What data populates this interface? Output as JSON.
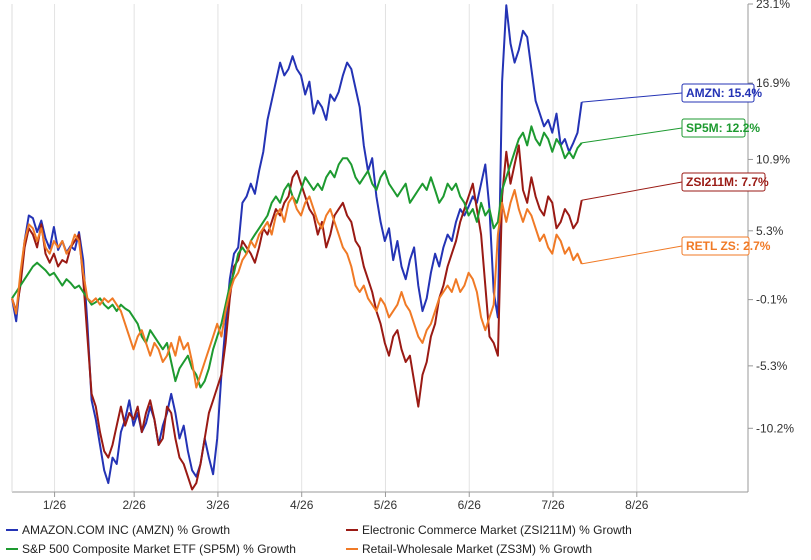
{
  "chart_data": {
    "type": "line",
    "title": "",
    "xlabel": "",
    "ylabel": "",
    "x_ticks": [
      "1/26",
      "2/26",
      "3/26",
      "4/26",
      "5/26",
      "6/26",
      "7/26",
      "8/26"
    ],
    "y_ticks": [
      "23.1%",
      "16.9%",
      "10.9%",
      "5.3%",
      "-0.1%",
      "-5.3%",
      "-10.2%"
    ],
    "ylim": [
      -15.2,
      23.1
    ],
    "x_range": [
      0,
      159
    ],
    "grid": "vertical",
    "series": [
      {
        "name": "AMAZON.COM INC (AMZN) % Growth",
        "color": "#2433b5",
        "end_label": "AMZN: 15.4%",
        "values": [
          0,
          -1.8,
          1.5,
          4.5,
          6.5,
          6.3,
          5.2,
          6.1,
          4.7,
          3.9,
          5.6,
          3.8,
          4.5,
          3.6,
          4.1,
          3.8,
          5.2,
          3.0,
          -2.0,
          -8.0,
          -9.5,
          -11.5,
          -13.5,
          -14.5,
          -12.5,
          -13.0,
          -10.5,
          -9.5,
          -8.0,
          -10.0,
          -9.0,
          -10.5,
          -9.8,
          -8.5,
          -9.5,
          -11.5,
          -10.0,
          -9.0,
          -7.5,
          -9.0,
          -11.0,
          -10.0,
          -12.0,
          -13.5,
          -14.0,
          -13.0,
          -11.0,
          -12.5,
          -13.8,
          -11.0,
          -6.0,
          -2.0,
          1.5,
          3.5,
          4.0,
          7.5,
          8.0,
          9.0,
          8.2,
          10.0,
          11.5,
          14.0,
          15.5,
          17.0,
          18.5,
          17.5,
          18.0,
          19.0,
          18.0,
          17.5,
          16.0,
          17.0,
          14.5,
          15.5,
          15.0,
          14.0,
          16.0,
          15.5,
          16.2,
          17.5,
          18.5,
          18.0,
          16.5,
          15.0,
          12.0,
          10.0,
          11.0,
          8.0,
          6.0,
          4.5,
          5.5,
          3.0,
          4.5,
          2.5,
          1.5,
          3.0,
          4.0,
          1.0,
          -1.0,
          0.0,
          2.0,
          3.5,
          2.5,
          4.0,
          5.0,
          4.5,
          6.0,
          7.0,
          6.5,
          7.2,
          8.0,
          7.5,
          9.0,
          10.5,
          7.0,
          0.5,
          -1.5,
          17.0,
          23.0,
          20.0,
          18.5,
          19.5,
          21.0,
          20.5,
          18.0,
          15.5,
          14.5,
          13.5,
          14.0,
          13.0,
          14.5,
          12.0,
          12.5,
          11.5,
          12.2,
          13.0,
          15.4
        ]
      },
      {
        "name": "Electronic Commerce Market (ZSI211M) % Growth",
        "color": "#9a1a14",
        "end_label": "ZSI211M: 7.7%",
        "values": [
          0,
          -1.0,
          1.0,
          4.0,
          5.5,
          5.0,
          4.0,
          5.8,
          3.5,
          2.8,
          3.5,
          2.5,
          3.0,
          2.8,
          4.0,
          4.5,
          5.0,
          1.5,
          -3.0,
          -7.5,
          -8.5,
          -10.5,
          -12.0,
          -12.5,
          -11.5,
          -10.0,
          -8.5,
          -10.0,
          -9.0,
          -9.5,
          -8.5,
          -10.5,
          -9.0,
          -8.0,
          -9.5,
          -11.5,
          -11.0,
          -8.5,
          -9.0,
          -11.0,
          -12.5,
          -13.0,
          -14.0,
          -15.0,
          -14.5,
          -13.0,
          -11.0,
          -9.0,
          -8.0,
          -7.0,
          -6.0,
          -3.5,
          0.0,
          2.5,
          3.0,
          4.5,
          4.0,
          3.5,
          2.8,
          4.0,
          5.5,
          5.0,
          6.0,
          7.0,
          6.5,
          7.5,
          8.0,
          9.5,
          10.0,
          9.0,
          8.0,
          7.0,
          6.5,
          5.0,
          6.0,
          4.0,
          5.0,
          6.5,
          7.0,
          7.5,
          6.5,
          6.0,
          4.5,
          4.0,
          2.5,
          1.5,
          0.5,
          -1.0,
          -2.0,
          -3.5,
          -4.5,
          -3.0,
          -2.5,
          -4.0,
          -5.0,
          -4.5,
          -6.5,
          -8.5,
          -6.0,
          -5.0,
          -3.0,
          -2.0,
          0.0,
          1.0,
          2.5,
          3.5,
          4.5,
          6.0,
          7.0,
          8.0,
          9.0,
          7.0,
          5.0,
          1.0,
          -3.0,
          -3.5,
          -4.5,
          8.0,
          11.5,
          9.0,
          10.5,
          12.0,
          8.5,
          7.5,
          9.5,
          8.0,
          7.0,
          6.5,
          8.0,
          7.5,
          5.5,
          6.0,
          7.0,
          6.5,
          5.5,
          6.0,
          7.7
        ]
      },
      {
        "name": "S&P 500 Composite Market ETF (SP5M) % Growth",
        "color": "#1d9a30",
        "end_label": "SP5M: 12.2%",
        "values": [
          0,
          0.5,
          1.0,
          1.5,
          2.0,
          2.5,
          2.8,
          2.5,
          2.2,
          1.8,
          2.0,
          1.5,
          1.0,
          1.5,
          1.2,
          0.8,
          1.0,
          0.5,
          0.0,
          -0.5,
          -0.3,
          0.0,
          -0.5,
          -0.8,
          -0.5,
          -1.0,
          -0.5,
          -0.8,
          -1.0,
          -1.5,
          -2.0,
          -3.0,
          -3.5,
          -2.5,
          -3.0,
          -3.5,
          -4.0,
          -3.5,
          -5.0,
          -6.5,
          -5.5,
          -5.0,
          -4.5,
          -5.5,
          -6.0,
          -7.0,
          -6.5,
          -5.5,
          -4.0,
          -3.0,
          -2.0,
          -0.5,
          1.0,
          2.0,
          3.5,
          4.0,
          3.5,
          4.5,
          5.0,
          5.5,
          6.0,
          6.5,
          7.5,
          8.0,
          7.5,
          8.5,
          9.0,
          8.0,
          7.5,
          8.5,
          9.5,
          9.0,
          8.5,
          9.0,
          8.5,
          9.5,
          10.0,
          9.5,
          10.5,
          11.0,
          11.0,
          10.5,
          9.5,
          9.0,
          9.5,
          10.0,
          9.0,
          8.5,
          9.5,
          10.0,
          9.0,
          8.5,
          8.0,
          8.5,
          9.0,
          7.5,
          8.0,
          8.5,
          9.0,
          8.5,
          9.5,
          8.5,
          7.5,
          8.0,
          9.0,
          8.5,
          9.0,
          8.0,
          7.5,
          6.5,
          7.0,
          6.0,
          7.5,
          6.5,
          7.0,
          5.5,
          6.0,
          8.5,
          9.5,
          10.5,
          11.5,
          12.5,
          13.0,
          12.0,
          13.5,
          12.5,
          12.0,
          13.0,
          12.5,
          11.5,
          12.5,
          12.0,
          11.0,
          11.5,
          11.0,
          11.8,
          12.2
        ]
      },
      {
        "name": "Retail-Wholesale Market (ZS3M) % Growth",
        "color": "#f07a26",
        "end_label": "RETL ZS: 2.7%",
        "values": [
          0,
          -1.2,
          2.0,
          4.5,
          5.8,
          5.5,
          4.5,
          5.5,
          4.0,
          3.5,
          4.5,
          4.0,
          4.5,
          3.5,
          4.0,
          5.0,
          4.5,
          2.0,
          0.0,
          -0.3,
          0.0,
          -0.5,
          0.0,
          -0.3,
          0.0,
          -0.5,
          -1.0,
          -2.0,
          -3.0,
          -4.0,
          -3.0,
          -2.5,
          -3.5,
          -4.5,
          -3.5,
          -4.0,
          -5.0,
          -4.5,
          -3.5,
          -4.5,
          -3.0,
          -4.0,
          -3.5,
          -5.0,
          -7.0,
          -6.0,
          -5.0,
          -4.0,
          -3.0,
          -2.0,
          -3.0,
          -1.0,
          0.5,
          1.5,
          2.0,
          3.0,
          3.5,
          4.5,
          4.0,
          5.0,
          5.5,
          6.0,
          5.0,
          6.5,
          7.0,
          6.0,
          7.5,
          8.0,
          7.0,
          6.5,
          7.5,
          8.0,
          7.0,
          6.0,
          5.5,
          6.5,
          7.0,
          6.0,
          5.0,
          4.0,
          3.5,
          2.5,
          1.0,
          0.5,
          1.0,
          0.0,
          -0.5,
          -1.0,
          0.0,
          -0.5,
          -1.5,
          -1.0,
          -0.5,
          0.5,
          -0.5,
          -1.0,
          -2.0,
          -3.0,
          -3.5,
          -2.5,
          -2.0,
          -1.0,
          0.0,
          0.5,
          1.0,
          0.5,
          1.5,
          0.5,
          1.0,
          2.0,
          1.5,
          0.5,
          -1.5,
          -2.5,
          -1.5,
          -0.5,
          5.0,
          7.5,
          6.0,
          7.5,
          8.5,
          7.0,
          6.0,
          7.0,
          6.5,
          5.5,
          4.5,
          5.0,
          4.0,
          3.5,
          5.0,
          4.5,
          3.5,
          4.0,
          3.0,
          3.5,
          2.7
        ]
      }
    ]
  },
  "legend": [
    {
      "label": "AMAZON.COM INC (AMZN) % Growth",
      "color": "#2433b5"
    },
    {
      "label": "Electronic Commerce Market (ZSI211M) % Growth",
      "color": "#9a1a14"
    },
    {
      "label": "S&P 500 Composite Market ETF (SP5M) % Growth",
      "color": "#1d9a30"
    },
    {
      "label": "Retail-Wholesale Market (ZS3M) % Growth",
      "color": "#f07a26"
    }
  ]
}
